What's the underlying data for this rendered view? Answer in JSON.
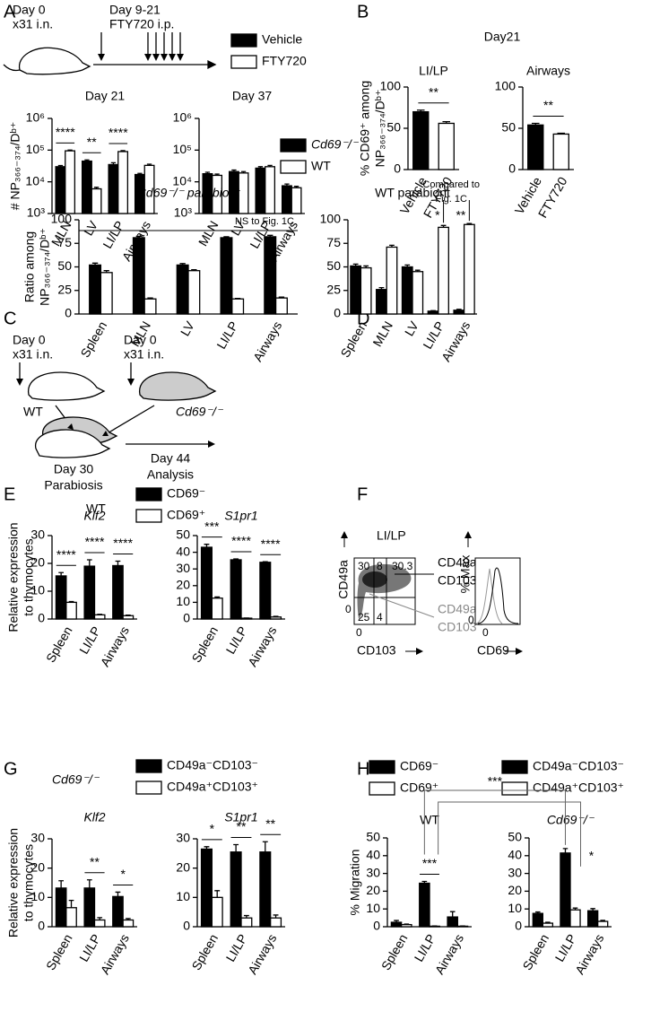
{
  "figure": {
    "panel_labels": [
      "A",
      "B",
      "C",
      "D",
      "E",
      "F",
      "G",
      "H"
    ],
    "a_timeline": {
      "start_day": "Day 0",
      "start_treatment": "x31 i.n.",
      "drug_days": "Day 9-21",
      "drug": "FTY720 i.p."
    },
    "b_title": "Day21",
    "c_diagram": {
      "left_day": "Day 0",
      "left_treatment": "x31 i.n.",
      "right_day": "Day 0",
      "right_treatment": "x31 i.n.",
      "left_mouse": "WT",
      "right_mouse": "Cd69⁻/⁻",
      "join_day": "Day 30",
      "join_label": "Parabiosis",
      "end_day": "Day 44",
      "end_label": "Analysis"
    },
    "e_genotype": "WT",
    "f_flow": {
      "tissue": "LI/LP",
      "y_axis": "CD49a",
      "x_axis": "CD103",
      "q_top_left": "30",
      "q_top_mid": "8",
      "q_top_right": "30.3",
      "q_bottom_left": "25",
      "q_bottom_mid": "4",
      "y_zero": "0",
      "x_zero": "0",
      "pos_line1": "CD49a⁺",
      "pos_line2": "CD103⁺",
      "neg_line1": "CD49a⁻",
      "neg_line2": "CD103⁻",
      "hist_y_axis": "% Max",
      "hist_x_axis": "CD69",
      "hist_zero": "0"
    },
    "g_genotype": "Cd69⁻/⁻",
    "h_comparisons": [
      "***",
      "*"
    ]
  },
  "chart_data": [
    {
      "type": "bar",
      "title": "Day 21",
      "log_scale": true,
      "ylabel": [
        "# NP₃₆₆₋₃₇₄/Dᵇ⁺"
      ],
      "legend": true,
      "categories": [
        "MLN",
        "LV",
        "LI/LP",
        "Airways"
      ],
      "series": [
        {
          "name": "Vehicle",
          "color": "#000000",
          "values": [
            30000,
            45000,
            35000,
            17000
          ],
          "errors": [
            2500,
            4000,
            5000,
            1500
          ]
        },
        {
          "name": "FTY720",
          "color": "#ffffff",
          "values": [
            95000,
            6000,
            90000,
            33000
          ],
          "errors": [
            5000,
            700,
            6000,
            3000
          ]
        }
      ],
      "significance": [
        "****",
        "**",
        "****",
        null
      ],
      "ylim": [
        1000,
        1000000
      ],
      "yticks": [
        {
          "value": 1000,
          "label": "10³"
        },
        {
          "value": 10000,
          "label": "10⁴"
        },
        {
          "value": 100000,
          "label": "10⁵"
        },
        {
          "value": 1000000,
          "label": "10⁶"
        }
      ]
    },
    {
      "type": "bar",
      "title": "Day 37",
      "log_scale": true,
      "categories": [
        "MLN",
        "LV",
        "LI/LP",
        "Airways"
      ],
      "series": [
        {
          "color": "#000000",
          "values": [
            18000,
            21000,
            27000,
            7500
          ],
          "errors": [
            2000,
            2500,
            3000,
            1000
          ]
        },
        {
          "color": "#ffffff",
          "values": [
            16000,
            19000,
            30000,
            6500
          ],
          "errors": [
            1500,
            2000,
            3000,
            700
          ]
        }
      ],
      "ylim": [
        1000,
        1000000
      ],
      "yticks": [
        {
          "value": 1000,
          "label": "10³"
        },
        {
          "value": 10000,
          "label": "10⁴"
        },
        {
          "value": 100000,
          "label": "10⁵"
        },
        {
          "value": 1000000,
          "label": "10⁶"
        }
      ]
    },
    {
      "type": "bar",
      "title": "LI/LP",
      "ylabel": [
        "% CD69⁺ among",
        "NP₃₆₆₋₃₇₄/Dᵇ⁺"
      ],
      "categories": [
        "Vehicle",
        "FTY720"
      ],
      "series": [
        {
          "colors": [
            "#000000",
            "#ffffff"
          ],
          "values": [
            70,
            56
          ],
          "errors": [
            2,
            2
          ]
        }
      ],
      "comparison": "**",
      "ylim": [
        0,
        100
      ],
      "yticks": [
        0,
        50,
        100
      ]
    },
    {
      "type": "bar",
      "title": "Airways",
      "categories": [
        "Vehicle",
        "FTY720"
      ],
      "series": [
        {
          "colors": [
            "#000000",
            "#ffffff"
          ],
          "values": [
            54,
            43
          ],
          "errors": [
            2,
            1
          ]
        }
      ],
      "comparison": "**",
      "ylim": [
        0,
        100
      ],
      "yticks": [
        0,
        50,
        100
      ]
    },
    {
      "type": "bar",
      "title": "Cd69⁻/⁻ parabiont",
      "ylabel": [
        "Ratio among",
        "NP₃₆₆₋₃₇₄/Dᵇ⁺"
      ],
      "legend": true,
      "categories": [
        "Spleen",
        "MLN",
        "LV",
        "LI/LP",
        "Airways"
      ],
      "series": [
        {
          "name": "Cd69⁻/⁻",
          "color": "#000000",
          "values": [
            52,
            81,
            52,
            81,
            82
          ],
          "errors": [
            2,
            1.5,
            1.5,
            1,
            1.5
          ]
        },
        {
          "name": "WT",
          "color": "#ffffff",
          "values": [
            44,
            16,
            46,
            16,
            17
          ],
          "errors": [
            2,
            1,
            1,
            0.5,
            1
          ]
        }
      ],
      "note": [
        "NS to Fig. 1C"
      ],
      "ylim": [
        0,
        100
      ],
      "yticks": [
        0,
        25,
        50,
        75,
        100
      ]
    },
    {
      "type": "bar",
      "title": "WT parabiont",
      "categories": [
        "Spleen",
        "MLN",
        "LV",
        "LI/LP",
        "Airways"
      ],
      "series": [
        {
          "color": "#000000",
          "values": [
            51,
            26,
            50,
            3,
            4
          ],
          "errors": [
            2,
            2,
            2,
            0.5,
            1
          ]
        },
        {
          "color": "#ffffff",
          "values": [
            49,
            71,
            45,
            92,
            95
          ],
          "errors": [
            2,
            2,
            1.5,
            2,
            1
          ]
        }
      ],
      "significance": [
        null,
        null,
        null,
        "*",
        "**"
      ],
      "note": [
        "Compared to",
        "Fig. 1C"
      ],
      "ylim": [
        0,
        100
      ],
      "yticks": [
        0,
        25,
        50,
        75,
        100
      ]
    },
    {
      "type": "bar",
      "title": "Klf2",
      "ylabel": [
        "Relative expression",
        "to thymocytes"
      ],
      "legend": true,
      "categories": [
        "Spleen",
        "LI/LP",
        "Airways"
      ],
      "series": [
        {
          "name": "CD69⁻",
          "color": "#000000",
          "values": [
            15.5,
            19,
            19.2
          ],
          "errors": [
            1.2,
            2.3,
            1.6
          ]
        },
        {
          "name": "CD69⁺",
          "color": "#ffffff",
          "values": [
            6,
            1.5,
            1.2
          ],
          "errors": [
            0.3,
            0.2,
            0.2
          ]
        }
      ],
      "significance": [
        "****",
        "****",
        "****"
      ],
      "ylim": [
        0,
        30
      ],
      "yticks": [
        0,
        10,
        20,
        30
      ]
    },
    {
      "type": "bar",
      "title": "S1pr1",
      "categories": [
        "Spleen",
        "LI/LP",
        "Airways"
      ],
      "series": [
        {
          "color": "#000000",
          "values": [
            43,
            35.5,
            34
          ],
          "errors": [
            1.8,
            0.5,
            0.3
          ]
        },
        {
          "color": "#ffffff",
          "values": [
            12.5,
            0.5,
            1.2
          ],
          "errors": [
            0.7,
            0.1,
            0.4
          ]
        }
      ],
      "significance": [
        "***",
        "****",
        "****"
      ],
      "ylim": [
        0,
        50
      ],
      "yticks": [
        0,
        10,
        20,
        30,
        40,
        50
      ]
    },
    {
      "type": "bar",
      "title": "Klf2",
      "ylabel": [
        "Relative expression",
        "to thymocytes"
      ],
      "legend": true,
      "categories": [
        "Spleen",
        "LI/LP",
        "Airways"
      ],
      "series": [
        {
          "name": "CD49a⁻CD103⁻",
          "color": "#000000",
          "values": [
            13.2,
            13.2,
            10.3
          ],
          "errors": [
            2.5,
            2.8,
            1.5
          ]
        },
        {
          "name": "CD49a⁺CD103⁺",
          "color": "#ffffff",
          "values": [
            6.5,
            2.3,
            2.3
          ],
          "errors": [
            2.5,
            0.8,
            0.5
          ]
        }
      ],
      "significance": [
        null,
        "**",
        "*"
      ],
      "ylim": [
        0,
        30
      ],
      "yticks": [
        0,
        10,
        20,
        30
      ]
    },
    {
      "type": "bar",
      "title": "S1pr1",
      "categories": [
        "Spleen",
        "LI/LP",
        "Airways"
      ],
      "series": [
        {
          "color": "#000000",
          "values": [
            26.5,
            25.5,
            25.5
          ],
          "errors": [
            0.8,
            2.5,
            3.5
          ]
        },
        {
          "color": "#ffffff",
          "values": [
            10,
            3,
            3
          ],
          "errors": [
            2.3,
            0.8,
            1
          ]
        }
      ],
      "significance": [
        "*",
        "**",
        "**"
      ],
      "ylim": [
        0,
        30
      ],
      "yticks": [
        0,
        10,
        20,
        30
      ]
    },
    {
      "type": "bar",
      "title": "WT",
      "ylabel": [
        "% Migration"
      ],
      "legend": true,
      "categories": [
        "Spleen",
        "LI/LP",
        "Airways"
      ],
      "series": [
        {
          "name": "CD69⁻",
          "color": "#000000",
          "values": [
            2.5,
            24.5,
            5.5
          ],
          "errors": [
            1,
            1,
            3
          ]
        },
        {
          "name": "CD69⁺",
          "color": "#ffffff",
          "values": [
            1.2,
            0.3,
            0.3
          ],
          "errors": [
            0.3,
            0.1,
            0.1
          ]
        }
      ],
      "significance": [
        null,
        "***",
        null
      ],
      "ylim": [
        0,
        50
      ],
      "yticks": [
        0,
        10,
        20,
        30,
        40,
        50
      ]
    },
    {
      "type": "bar",
      "title": "Cd69⁻/⁻",
      "legend": true,
      "categories": [
        "Spleen",
        "LI/LP",
        "Airways"
      ],
      "series": [
        {
          "name": "CD49a⁻CD103⁻",
          "color": "#000000",
          "values": [
            7.5,
            41.5,
            9
          ],
          "errors": [
            0.8,
            2.5,
            1.2
          ]
        },
        {
          "name": "CD49a⁺CD103⁺",
          "color": "#ffffff",
          "values": [
            2,
            9.5,
            3
          ],
          "errors": [
            0.5,
            1,
            0.6
          ]
        }
      ],
      "ylim": [
        0,
        50
      ],
      "yticks": [
        0,
        10,
        20,
        30,
        40,
        50
      ]
    }
  ]
}
